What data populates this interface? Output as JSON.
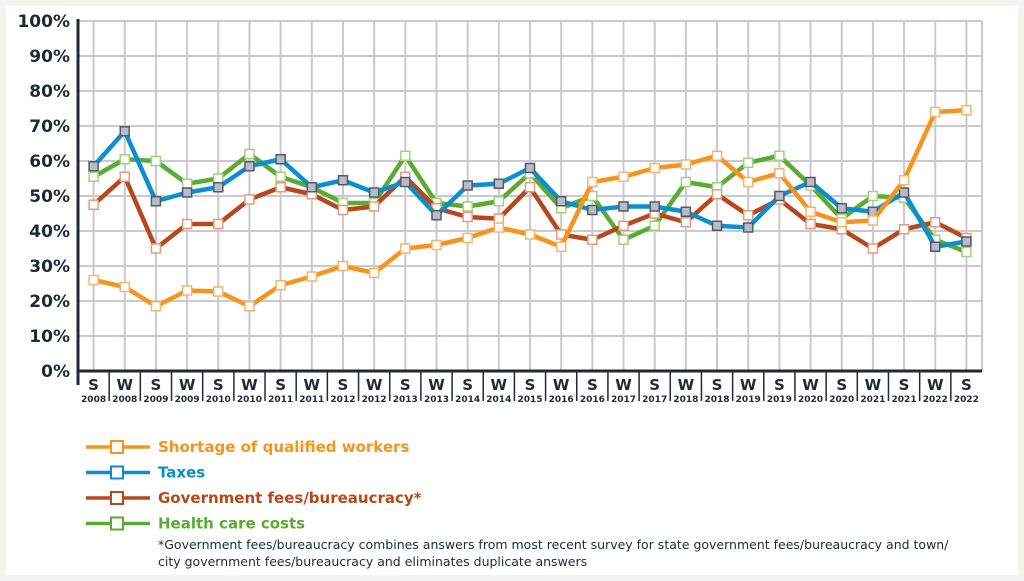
{
  "chart_data": {
    "type": "line",
    "title": "",
    "xlabel": "",
    "ylabel": "",
    "ylim": [
      0,
      100
    ],
    "yticks": [
      "0%",
      "10%",
      "20%",
      "30%",
      "40%",
      "50%",
      "60%",
      "70%",
      "80%",
      "90%",
      "100%"
    ],
    "grid": true,
    "legend_position": "bottom-left",
    "categories": [
      {
        "season": "S",
        "year": "2008"
      },
      {
        "season": "W",
        "year": "2008"
      },
      {
        "season": "S",
        "year": "2009"
      },
      {
        "season": "W",
        "year": "2009"
      },
      {
        "season": "S",
        "year": "2010"
      },
      {
        "season": "W",
        "year": "2010"
      },
      {
        "season": "S",
        "year": "2011"
      },
      {
        "season": "W",
        "year": "2011"
      },
      {
        "season": "S",
        "year": "2012"
      },
      {
        "season": "W",
        "year": "2012"
      },
      {
        "season": "S",
        "year": "2013"
      },
      {
        "season": "W",
        "year": "2013"
      },
      {
        "season": "S",
        "year": "2014"
      },
      {
        "season": "W",
        "year": "2014"
      },
      {
        "season": "S",
        "year": "2015"
      },
      {
        "season": "W",
        "year": "2016"
      },
      {
        "season": "S",
        "year": "2016"
      },
      {
        "season": "W",
        "year": "2017"
      },
      {
        "season": "S",
        "year": "2017"
      },
      {
        "season": "W",
        "year": "2018"
      },
      {
        "season": "S",
        "year": "2018"
      },
      {
        "season": "W",
        "year": "2019"
      },
      {
        "season": "S",
        "year": "2019"
      },
      {
        "season": "W",
        "year": "2020"
      },
      {
        "season": "S",
        "year": "2020"
      },
      {
        "season": "W",
        "year": "2021"
      },
      {
        "season": "S",
        "year": "2021"
      },
      {
        "season": "W",
        "year": "2022"
      },
      {
        "season": "S",
        "year": "2022"
      }
    ],
    "series": [
      {
        "name": "Shortage of qualified workers",
        "color": "#f7941d",
        "marker_fill": "#ffffff",
        "marker_stroke": "#f9b46a",
        "values": [
          26,
          24,
          18.5,
          23,
          22.7,
          18.5,
          24.5,
          27,
          30,
          28,
          35,
          36,
          38,
          41,
          39,
          35.5,
          54,
          55.5,
          58,
          59,
          61.5,
          54,
          56.5,
          45.5,
          42.5,
          43,
          54.5,
          74,
          74.5
        ]
      },
      {
        "name": "Taxes",
        "color": "#0c8fce",
        "marker_fill": "#b8bcc4",
        "marker_stroke": "#555b66",
        "values": [
          58.5,
          68.5,
          48.5,
          51,
          52.5,
          58.5,
          60.5,
          52.5,
          54.5,
          51,
          54,
          44.5,
          53,
          53.5,
          58,
          48.5,
          46,
          47,
          47,
          45.5,
          41.5,
          41,
          50,
          54,
          46.5,
          45.5,
          51,
          35.5,
          37
        ]
      },
      {
        "name": "Government fees/bureaucracy*",
        "color": "#b7471c",
        "marker_fill": "#ffffff",
        "marker_stroke": "#e89a80",
        "values": [
          47.5,
          55.5,
          35,
          42,
          42,
          49,
          52.5,
          50.5,
          46,
          47,
          55.5,
          46.5,
          44,
          43.5,
          52.5,
          39,
          37.5,
          41.5,
          45,
          42.5,
          50.5,
          44.5,
          49,
          42,
          40.5,
          35,
          40.5,
          42.5,
          38
        ]
      },
      {
        "name": "Health care costs",
        "color": "#5aab32",
        "marker_fill": "#ffffff",
        "marker_stroke": "#9fd27f",
        "values": [
          55.5,
          60.5,
          60,
          53.5,
          55,
          62,
          55.5,
          52.5,
          48,
          48,
          61.5,
          48,
          47,
          48.5,
          56.5,
          46.5,
          50,
          37.5,
          41.5,
          54,
          52.5,
          59.5,
          61.5,
          53,
          43.5,
          50,
          49.5,
          37.5,
          34
        ]
      }
    ],
    "footnote": [
      "*Government fees/bureaucracy combines answers from most recent survey for state government fees/bureaucracy and town/",
      "city government fees/bureaucracy and eliminates duplicate answers"
    ]
  }
}
